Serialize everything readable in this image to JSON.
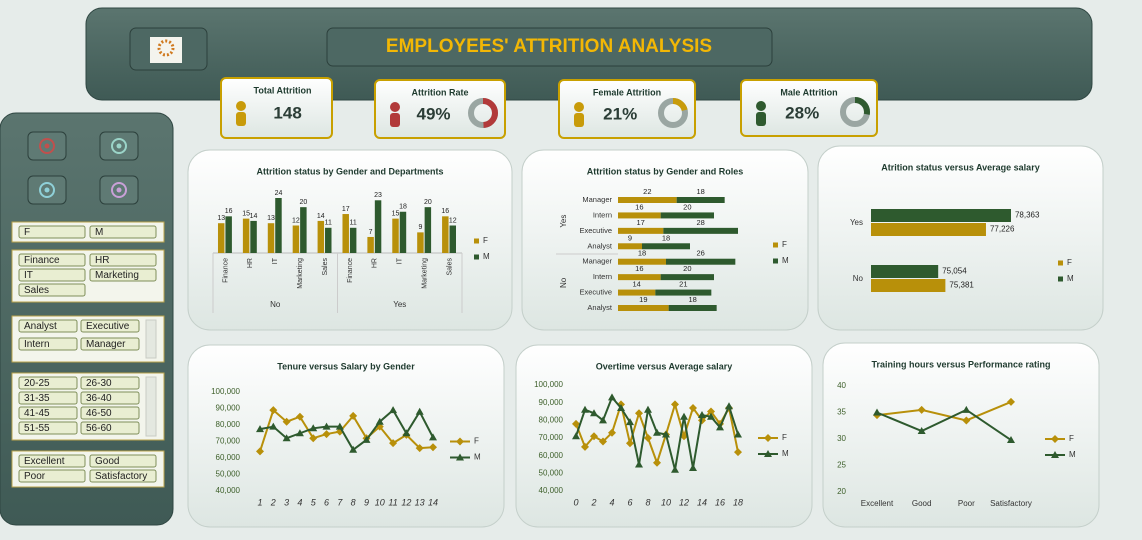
{
  "header": {
    "title": "EMPLOYEES' ATTRITION ANALYSIS"
  },
  "kpis": [
    {
      "label": "Total Attrition",
      "value": 148,
      "color": "#c89b0a"
    },
    {
      "label": "Attrition Rate",
      "value": 49,
      "value_label": "49%",
      "color": "#b23a3a"
    },
    {
      "label": "Female Attrition",
      "value": 21,
      "value_label": "21%",
      "color": "#c89b0a"
    },
    {
      "label": "Male Attrition",
      "value": 28,
      "value_label": "28%",
      "color": "#2f5a2f"
    }
  ],
  "slicers": [
    [
      "F",
      "M"
    ],
    [
      "Finance",
      "HR",
      "IT",
      "Marketing",
      "Sales"
    ],
    [
      "Analyst",
      "Executive",
      "Intern",
      "Manager"
    ],
    [
      "20-25",
      "26-30",
      "31-35",
      "36-40",
      "41-45",
      "46-50",
      "51-55",
      "56-60"
    ],
    [
      "Excellent",
      "Good",
      "Poor",
      "Satisfactory"
    ]
  ],
  "chart_data": [
    {
      "type": "grouped_bar",
      "title": "Attrition status by Gender and Departments",
      "categories": [
        "Finance",
        "HR",
        "IT",
        "Marketing",
        "Sales",
        "Finance",
        "HR",
        "IT",
        "Marketing",
        "Sales"
      ],
      "groups": [
        "No",
        "Yes"
      ],
      "series": [
        {
          "name": "F",
          "color": "#b8900a",
          "values": [
            13,
            15,
            13,
            12,
            14,
            17,
            7,
            15,
            9,
            16
          ]
        },
        {
          "name": "M",
          "color": "#2e5a2e",
          "values": [
            16,
            14,
            24,
            20,
            11,
            11,
            23,
            18,
            20,
            12
          ]
        }
      ]
    },
    {
      "type": "stacked_hbar",
      "title": "Attrition status by Gender and  Roles",
      "categories": [
        "Manager",
        "Intern",
        "Executive",
        "Analyst",
        "Manager",
        "Intern",
        "Executive",
        "Analyst"
      ],
      "groups": [
        "Yes",
        "No"
      ],
      "series": [
        {
          "name": "F",
          "color": "#b8900a",
          "values": [
            22,
            16,
            17,
            9,
            18,
            16,
            14,
            19
          ]
        },
        {
          "name": "M",
          "color": "#2e5a2e",
          "values": [
            18,
            20,
            28,
            18,
            26,
            20,
            21,
            18
          ]
        }
      ]
    },
    {
      "type": "hbar",
      "title": "Atrition status versus Average salary",
      "categories": [
        "Yes",
        "No"
      ],
      "xlim": [
        72000,
        79000
      ],
      "series": [
        {
          "name": "F",
          "color": "#b8900a",
          "values": [
            77226,
            75381
          ],
          "value_labels": [
            "77,226",
            "75,381"
          ]
        },
        {
          "name": "M",
          "color": "#2e5a2e",
          "values": [
            78363,
            75054
          ],
          "value_labels": [
            "78,363",
            "75,054"
          ]
        }
      ]
    },
    {
      "type": "line",
      "title": "Tenure versus Salary by Gender",
      "italic_x": true,
      "categories": [
        1,
        2,
        3,
        4,
        5,
        6,
        7,
        8,
        9,
        10,
        11,
        12,
        13,
        14
      ],
      "ylim": [
        40000,
        100000
      ],
      "yticks": [
        {
          "value": 40000,
          "label": "40,000"
        },
        {
          "value": 50000,
          "label": "50,000"
        },
        {
          "value": 60000,
          "label": "60,000"
        },
        {
          "value": 70000,
          "label": "70,000"
        },
        {
          "value": 80000,
          "label": "80,000"
        },
        {
          "value": 90000,
          "label": "90,000"
        },
        {
          "value": 100000,
          "label": "100,000"
        }
      ],
      "series": [
        {
          "name": "F",
          "color": "#b8900a",
          "marker": "diamond",
          "values": [
            64000,
            89000,
            82000,
            85000,
            72000,
            74500,
            76000,
            85500,
            72000,
            79000,
            69000,
            74000,
            66000,
            66500
          ]
        },
        {
          "name": "M",
          "color": "#2e5a2e",
          "marker": "triangle",
          "values": [
            77500,
            79000,
            72000,
            75000,
            78000,
            79000,
            79000,
            65000,
            71000,
            82000,
            89000,
            75000,
            88000,
            72500
          ]
        }
      ]
    },
    {
      "type": "line",
      "title": "Overtime versus Average salary",
      "italic_x": true,
      "categories": [
        0,
        null,
        2,
        null,
        4,
        null,
        6,
        null,
        8,
        null,
        10,
        null,
        12,
        null,
        14,
        null,
        16,
        null,
        18
      ],
      "ylim": [
        40000,
        100000
      ],
      "yticks": [
        {
          "value": 40000,
          "label": "40,000"
        },
        {
          "value": 50000,
          "label": "50,000"
        },
        {
          "value": 60000,
          "label": "60,000"
        },
        {
          "value": 70000,
          "label": "70,000"
        },
        {
          "value": 80000,
          "label": "80,000"
        },
        {
          "value": 90000,
          "label": "90,000"
        },
        {
          "value": 100000,
          "label": "100,000"
        }
      ],
      "series": [
        {
          "name": "F",
          "color": "#b8900a",
          "marker": "diamond",
          "values": [
            78000,
            65000,
            71000,
            68000,
            73000,
            89000,
            67000,
            84000,
            70000,
            56000,
            72000,
            89000,
            71000,
            87000,
            80000,
            85000,
            78000,
            87000,
            62000
          ]
        },
        {
          "name": "M",
          "color": "#2e5a2e",
          "marker": "triangle",
          "values": [
            71000,
            86000,
            84000,
            80000,
            93000,
            87000,
            79000,
            55000,
            86000,
            73000,
            72000,
            52000,
            82000,
            53000,
            83000,
            82000,
            76000,
            88000,
            72000
          ]
        }
      ]
    },
    {
      "type": "line",
      "title": "Training hours versus Performance rating",
      "italic_x": false,
      "categories": [
        "Excellent",
        "Good",
        "Poor",
        "Satisfactory"
      ],
      "ylim": [
        20,
        40
      ],
      "yticks": [
        20,
        25,
        30,
        35,
        40
      ],
      "series": [
        {
          "name": "F",
          "color": "#b8900a",
          "marker": "diamond",
          "values": [
            34.5,
            35.5,
            33.5,
            37
          ]
        },
        {
          "name": "M",
          "color": "#2e5a2e",
          "marker": "triangle",
          "values": [
            35,
            31.5,
            35.5,
            29.8
          ]
        }
      ]
    }
  ]
}
